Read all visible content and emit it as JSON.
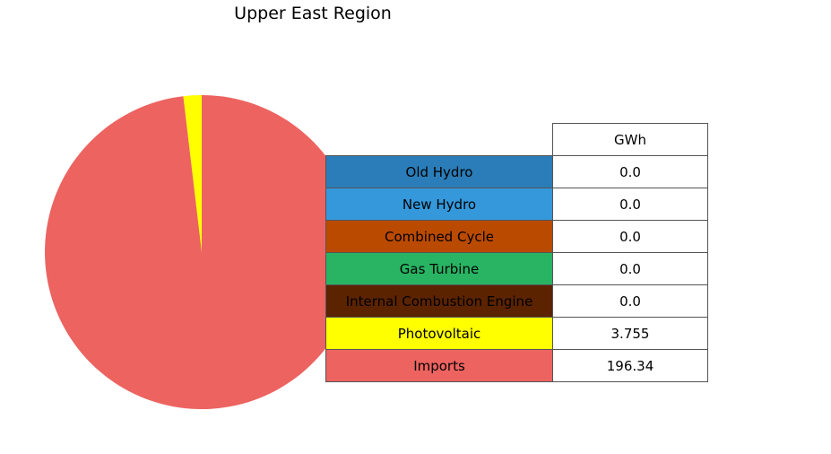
{
  "chart_data": {
    "type": "pie",
    "title": "Upper East Region",
    "column_header": "GWh",
    "slices": [
      {
        "label": "Old Hydro",
        "value": 0.0,
        "display": "0.0",
        "color": "#2a7db8"
      },
      {
        "label": "New Hydro",
        "value": 0.0,
        "display": "0.0",
        "color": "#3498db"
      },
      {
        "label": "Combined Cycle",
        "value": 0.0,
        "display": "0.0",
        "color": "#ba4a00"
      },
      {
        "label": "Gas Turbine",
        "value": 0.0,
        "display": "0.0",
        "color": "#28b463"
      },
      {
        "label": "Internal Combustion Engine",
        "value": 0.0,
        "display": "0.0",
        "color": "#5b2300"
      },
      {
        "label": "Photovoltaic",
        "value": 3.755,
        "display": "3.755",
        "color": "#ffff00"
      },
      {
        "label": "Imports",
        "value": 196.34,
        "display": "196.34",
        "color": "#ec6360"
      }
    ],
    "start_angle_deg": 90,
    "direction": "counterclockwise"
  }
}
